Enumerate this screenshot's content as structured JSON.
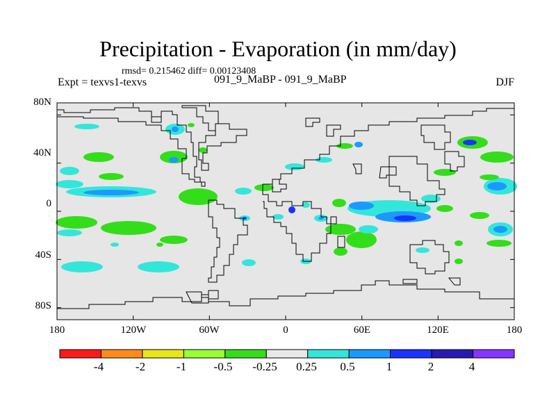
{
  "title": "Precipitation - Evaporation (in mm/day)",
  "stats_line": "rmsd= 0.215462  diff= 0.00123408",
  "experiment_label": "Expt = texvs1-texvs",
  "runs_label": "091_9_MaBP - 091_9_MaBP",
  "season_label": "DJF",
  "map": {
    "lat_ticks": [
      "80N",
      "40N",
      "0",
      "40S",
      "80S"
    ],
    "lat_tick_values": [
      80,
      40,
      0,
      -40,
      -80
    ],
    "lon_ticks": [
      "180",
      "120W",
      "60W",
      "0",
      "60E",
      "120E",
      "180"
    ],
    "lon_tick_values": [
      -180,
      -120,
      -60,
      0,
      60,
      120,
      180
    ]
  },
  "colorbar": {
    "labels": [
      "-4",
      "-2",
      "-1",
      "-0.5",
      "-0.25",
      "0.25",
      "0.5",
      "1",
      "2",
      "4"
    ],
    "colors": [
      "#ff1a1a",
      "#ff8c1a",
      "#e6e61a",
      "#99ff33",
      "#33dd1a",
      "#e8e8e8",
      "#33e6d9",
      "#1a99ff",
      "#1a33ff",
      "#2a1ab3",
      "#8833ff"
    ]
  }
}
